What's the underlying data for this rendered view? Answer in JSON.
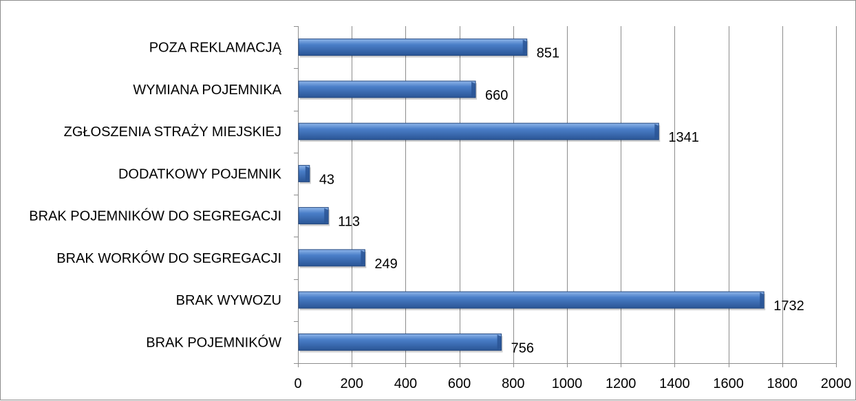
{
  "chart_data": {
    "type": "bar",
    "orientation": "horizontal",
    "categories": [
      "BRAK POJEMNIKÓW",
      "BRAK WYWOZU",
      "BRAK WORKÓW DO SEGREGACJI",
      "BRAK POJEMNIKÓW DO SEGREGACJI",
      "DODATKOWY POJEMNIK",
      "ZGŁOSZENIA STRAŻY MIEJSKIEJ",
      "WYMIANA POJEMNIKA",
      "POZA REKLAMACJĄ"
    ],
    "values": [
      756,
      1732,
      249,
      113,
      43,
      1341,
      660,
      851
    ],
    "xlim": [
      0,
      2000
    ],
    "x_ticks": [
      0,
      200,
      400,
      600,
      800,
      1000,
      1200,
      1400,
      1600,
      1800,
      2000
    ],
    "grid": "vertical",
    "legend": "none",
    "data_labels": true,
    "title": "",
    "xlabel": "",
    "ylabel": "",
    "colors": {
      "bar_fill": "#4a7ec8",
      "bar_light": "#8fb6ea",
      "bar_dark": "#2a5595",
      "bar_edge": "#22467d",
      "grid": "#8c8c8c",
      "axis": "#8c8c8c"
    }
  }
}
